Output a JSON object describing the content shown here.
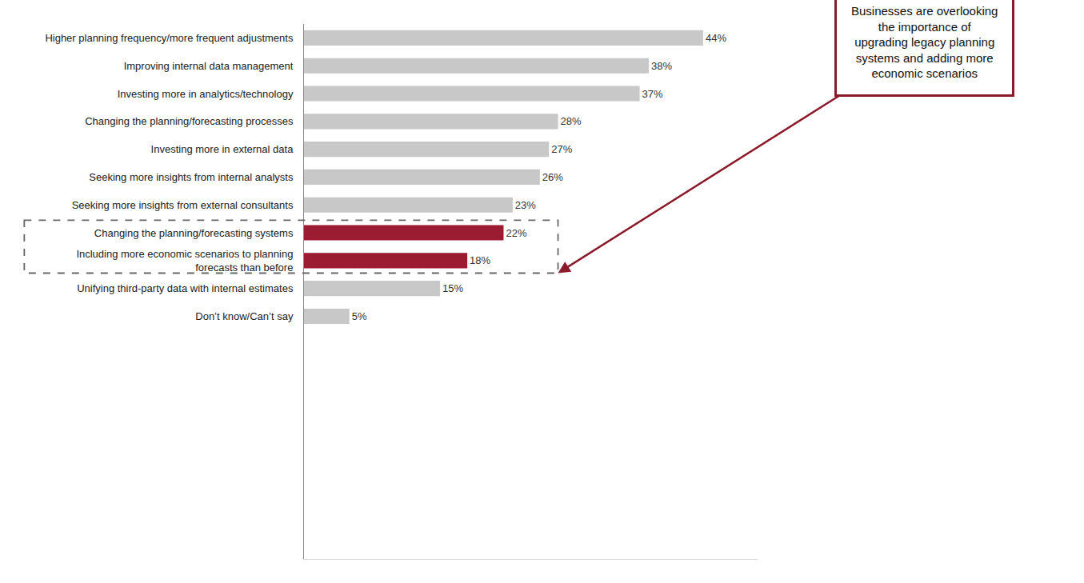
{
  "chart_data": {
    "type": "bar",
    "orientation": "horizontal",
    "categories": [
      "Higher planning frequency/more frequent adjustments",
      "Improving internal data management",
      "Investing more in analytics/technology",
      "Changing the planning/forecasting processes",
      "Investing more in external data",
      "Seeking more insights from internal analysts",
      "Seeking more insights from external consultants",
      "Changing the planning/forecasting systems",
      "Including more economic scenarios to planning\nforecasts than before",
      "Unifying third-party data with internal estimates",
      "Don’t know/Can’t say"
    ],
    "values": [
      44,
      38,
      37,
      28,
      27,
      26,
      23,
      22,
      18,
      15,
      5
    ],
    "value_labels": [
      "44%",
      "38%",
      "37%",
      "28%",
      "27%",
      "26%",
      "23%",
      "22%",
      "18%",
      "15%",
      "5%"
    ],
    "colors": [
      "#c8c8c8",
      "#c8c8c8",
      "#c8c8c8",
      "#c8c8c8",
      "#c8c8c8",
      "#c8c8c8",
      "#c8c8c8",
      "#9b1b30",
      "#9b1b30",
      "#c8c8c8",
      "#c8c8c8"
    ],
    "data_labels": true,
    "xlim": [
      0,
      50
    ],
    "tick_labels": "y",
    "grid": false,
    "annotations": [
      {
        "text": "Businesses are overlooking\nthe importance of\nupgrading legacy planning\nsystems and adding more\neconomic scenarios",
        "color": "#8b1a2a"
      }
    ]
  }
}
